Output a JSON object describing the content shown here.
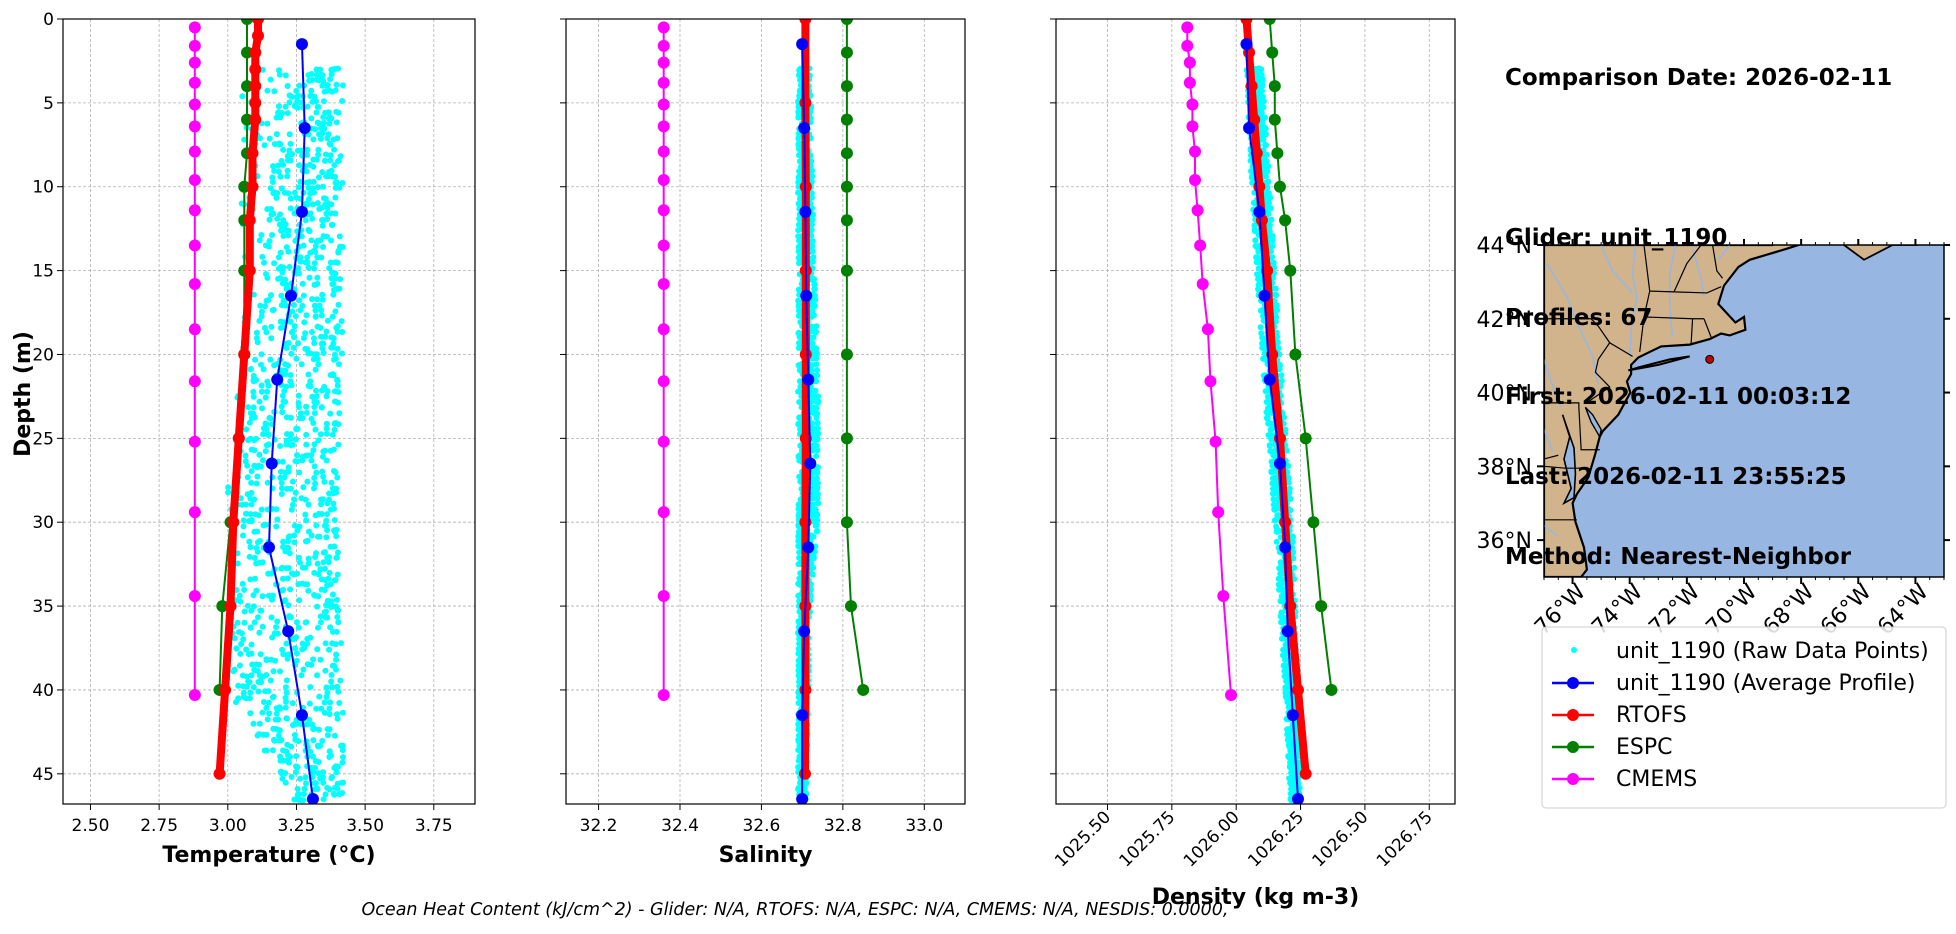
{
  "info": {
    "comparison_date": "Comparison Date: 2026-02-11",
    "glider": "Glider: unit_1190",
    "profiles": "Profiles: 67",
    "first": "First: 2026-02-11 00:03:12",
    "last": "Last: 2026-02-11 23:55:25",
    "method": "Method: Nearest-Neighbor"
  },
  "footer": "Ocean Heat Content (kJ/cm^2) - Glider: N/A,  RTOFS: N/A,  ESPC: N/A,  CMEMS: N/A,  NESDIS: 0.0000,",
  "colors": {
    "raw": "#00ffff",
    "glider": "#0000ff",
    "rtofs": "#ff0000",
    "espc": "#008000",
    "cmems": "#ff00ff",
    "land": "#d2b48c",
    "ocean": "#97b6e1",
    "river": "#97b6e1"
  },
  "legend": {
    "placement": "lower-right",
    "entries": [
      {
        "label": "unit_1190 (Raw Data Points)",
        "key": "raw"
      },
      {
        "label": "unit_1190 (Average Profile)",
        "key": "glider"
      },
      {
        "label": "RTOFS",
        "key": "rtofs"
      },
      {
        "label": "ESPC",
        "key": "espc"
      },
      {
        "label": "CMEMS",
        "key": "cmems"
      }
    ]
  },
  "chart_data": [
    {
      "type": "line",
      "xlabel": "Temperature (°C)",
      "ylabel": "Depth (m)",
      "xlim": [
        2.4,
        3.9
      ],
      "ylim": [
        46.8,
        0
      ],
      "xticks": [
        2.5,
        2.75,
        3.0,
        3.25,
        3.5,
        3.75
      ],
      "xtick_labels": [
        "2.50",
        "2.75",
        "3.00",
        "3.25",
        "3.50",
        "3.75"
      ],
      "yticks": [
        0,
        5,
        10,
        15,
        20,
        25,
        30,
        35,
        40,
        45
      ],
      "ytick_labels": [
        "0",
        "5",
        "10",
        "15",
        "20",
        "25",
        "30",
        "35",
        "40",
        "45"
      ],
      "grid": true,
      "raw_envelope": [
        [
          3.0,
          3.05,
          3.3,
          3.42
        ],
        [
          5,
          3.05,
          3.18,
          3.42
        ],
        [
          20,
          3.05,
          3.1,
          3.42
        ],
        [
          28,
          3.0,
          3.05,
          3.4
        ],
        [
          40,
          3.0,
          3.0,
          3.42
        ],
        [
          46.8,
          3.25,
          3.25,
          3.42
        ]
      ],
      "series": [
        {
          "name": "unit_1190 (Average Profile)",
          "key": "glider",
          "depth": [
            1.5,
            6.5,
            11.5,
            16.5,
            21.5,
            26.5,
            31.5,
            36.5,
            41.5,
            46.5
          ],
          "values": [
            3.27,
            3.28,
            3.27,
            3.23,
            3.18,
            3.16,
            3.15,
            3.22,
            3.27,
            3.31
          ]
        },
        {
          "name": "RTOFS",
          "key": "rtofs",
          "depth": [
            0,
            1,
            2,
            3,
            4,
            5,
            6,
            8,
            10,
            12,
            15,
            20,
            25,
            30,
            35,
            40,
            45
          ],
          "values": [
            3.11,
            3.11,
            3.1,
            3.1,
            3.1,
            3.1,
            3.1,
            3.09,
            3.09,
            3.08,
            3.08,
            3.06,
            3.04,
            3.02,
            3.01,
            2.99,
            2.97
          ]
        },
        {
          "name": "ESPC",
          "key": "espc",
          "depth": [
            0,
            2,
            4,
            6,
            8,
            10,
            12,
            15,
            20,
            25,
            30,
            35,
            40
          ],
          "values": [
            3.07,
            3.07,
            3.07,
            3.07,
            3.07,
            3.06,
            3.06,
            3.06,
            3.06,
            3.04,
            3.01,
            2.98,
            2.97
          ]
        },
        {
          "name": "CMEMS",
          "key": "cmems",
          "depth": [
            0.5,
            1.6,
            2.6,
            3.8,
            5.1,
            6.4,
            7.9,
            9.6,
            11.4,
            13.5,
            15.8,
            18.5,
            21.6,
            25.2,
            29.4,
            34.4,
            40.3
          ],
          "values": [
            2.88,
            2.88,
            2.88,
            2.88,
            2.88,
            2.88,
            2.88,
            2.88,
            2.88,
            2.88,
            2.88,
            2.88,
            2.88,
            2.88,
            2.88,
            2.88,
            2.88
          ]
        }
      ]
    },
    {
      "type": "line",
      "xlabel": "Salinity",
      "ylabel": "",
      "xlim": [
        32.12,
        33.1
      ],
      "ylim": [
        46.8,
        0
      ],
      "xticks": [
        32.2,
        32.4,
        32.6,
        32.8,
        33.0
      ],
      "xtick_labels": [
        "32.2",
        "32.4",
        "32.6",
        "32.8",
        "33.0"
      ],
      "yticks": [
        0,
        5,
        10,
        15,
        20,
        25,
        30,
        35,
        40,
        45
      ],
      "grid": true,
      "raw_envelope": [
        [
          3.0,
          32.69,
          32.69,
          32.72
        ],
        [
          15,
          32.69,
          32.69,
          32.73
        ],
        [
          20,
          32.69,
          32.69,
          32.74
        ],
        [
          30,
          32.69,
          32.69,
          32.74
        ],
        [
          35,
          32.69,
          32.69,
          32.72
        ],
        [
          46.8,
          32.69,
          32.69,
          32.71
        ]
      ],
      "series": [
        {
          "name": "unit_1190 (Average Profile)",
          "key": "glider",
          "depth": [
            1.5,
            6.5,
            11.5,
            16.5,
            21.5,
            26.5,
            31.5,
            36.5,
            41.5,
            46.5
          ],
          "values": [
            32.7,
            32.705,
            32.708,
            32.71,
            32.715,
            32.72,
            32.715,
            32.705,
            32.7,
            32.7
          ]
        },
        {
          "name": "RTOFS",
          "key": "rtofs",
          "depth": [
            0,
            5,
            10,
            15,
            20,
            25,
            30,
            35,
            40,
            45
          ],
          "values": [
            32.708,
            32.708,
            32.709,
            32.709,
            32.709,
            32.709,
            32.708,
            32.708,
            32.708,
            32.707
          ]
        },
        {
          "name": "ESPC",
          "key": "espc",
          "depth": [
            0,
            2,
            4,
            6,
            8,
            10,
            12,
            15,
            20,
            25,
            30,
            35,
            40
          ],
          "values": [
            32.81,
            32.81,
            32.81,
            32.81,
            32.81,
            32.81,
            32.81,
            32.81,
            32.81,
            32.81,
            32.81,
            32.82,
            32.85
          ]
        },
        {
          "name": "CMEMS",
          "key": "cmems",
          "depth": [
            0.5,
            1.6,
            2.6,
            3.8,
            5.1,
            6.4,
            7.9,
            9.6,
            11.4,
            13.5,
            15.8,
            18.5,
            21.6,
            25.2,
            29.4,
            34.4,
            40.3
          ],
          "values": [
            32.36,
            32.36,
            32.36,
            32.36,
            32.36,
            32.36,
            32.36,
            32.36,
            32.36,
            32.36,
            32.36,
            32.36,
            32.36,
            32.36,
            32.36,
            32.36,
            32.36
          ]
        }
      ]
    },
    {
      "type": "line",
      "xlabel": "Density (kg m-3)",
      "ylabel": "",
      "xlim": [
        1025.3,
        1026.85
      ],
      "ylim": [
        46.8,
        0
      ],
      "xticks": [
        1025.5,
        1025.75,
        1026.0,
        1026.25,
        1026.5,
        1026.75
      ],
      "xtick_labels": [
        "1025.50",
        "1025.75",
        "1026.00",
        "1026.25",
        "1026.50",
        "1026.75"
      ],
      "yticks": [
        0,
        5,
        10,
        15,
        20,
        25,
        30,
        35,
        40,
        45
      ],
      "grid": true,
      "raw_envelope": [
        [
          3.0,
          1026.04,
          1026.04,
          1026.1
        ],
        [
          10,
          1026.06,
          1026.06,
          1026.13
        ],
        [
          20,
          1026.1,
          1026.1,
          1026.17
        ],
        [
          30,
          1026.15,
          1026.15,
          1026.22
        ],
        [
          40,
          1026.19,
          1026.19,
          1026.24
        ],
        [
          46.8,
          1026.21,
          1026.21,
          1026.25
        ]
      ],
      "series": [
        {
          "name": "unit_1190 (Average Profile)",
          "key": "glider",
          "depth": [
            1.5,
            6.5,
            11.5,
            16.5,
            21.5,
            26.5,
            31.5,
            36.5,
            41.5,
            46.5
          ],
          "values": [
            1026.04,
            1026.05,
            1026.09,
            1026.11,
            1026.13,
            1026.17,
            1026.19,
            1026.2,
            1026.22,
            1026.24
          ]
        },
        {
          "name": "RTOFS",
          "key": "rtofs",
          "depth": [
            0,
            2,
            4,
            6,
            8,
            10,
            12,
            15,
            20,
            25,
            30,
            35,
            40,
            45
          ],
          "values": [
            1026.04,
            1026.05,
            1026.06,
            1026.07,
            1026.08,
            1026.09,
            1026.1,
            1026.12,
            1026.14,
            1026.17,
            1026.19,
            1026.21,
            1026.24,
            1026.27
          ]
        },
        {
          "name": "ESPC",
          "key": "espc",
          "depth": [
            0,
            2,
            4,
            6,
            8,
            10,
            12,
            15,
            20,
            25,
            30,
            35,
            40
          ],
          "values": [
            1026.13,
            1026.14,
            1026.15,
            1026.15,
            1026.16,
            1026.17,
            1026.19,
            1026.21,
            1026.23,
            1026.27,
            1026.3,
            1026.33,
            1026.37
          ]
        },
        {
          "name": "CMEMS",
          "key": "cmems",
          "depth": [
            0.5,
            1.6,
            2.6,
            3.8,
            5.1,
            6.4,
            7.9,
            9.6,
            11.4,
            13.5,
            15.8,
            18.5,
            21.6,
            25.2,
            29.4,
            34.4,
            40.3
          ],
          "values": [
            1025.81,
            1025.81,
            1025.82,
            1025.82,
            1025.83,
            1025.83,
            1025.84,
            1025.84,
            1025.85,
            1025.86,
            1025.87,
            1025.89,
            1025.9,
            1025.92,
            1025.93,
            1025.95,
            1025.98
          ]
        }
      ]
    }
  ],
  "map": {
    "type": "map",
    "lon_range": [
      -77,
      -63
    ],
    "lat_range": [
      35,
      44
    ],
    "xtick_values": [
      -76,
      -74,
      -72,
      -70,
      -68,
      -66,
      -64
    ],
    "xtick_labels": [
      "76°W",
      "74°W",
      "72°W",
      "70°W",
      "68°W",
      "66°W",
      "64°W"
    ],
    "ytick_values": [
      36,
      38,
      40,
      42,
      44
    ],
    "ytick_labels": [
      "36°N",
      "38°N",
      "40°N",
      "42°N",
      "44°N"
    ],
    "glider_position": [
      -71.2,
      40.9
    ]
  }
}
